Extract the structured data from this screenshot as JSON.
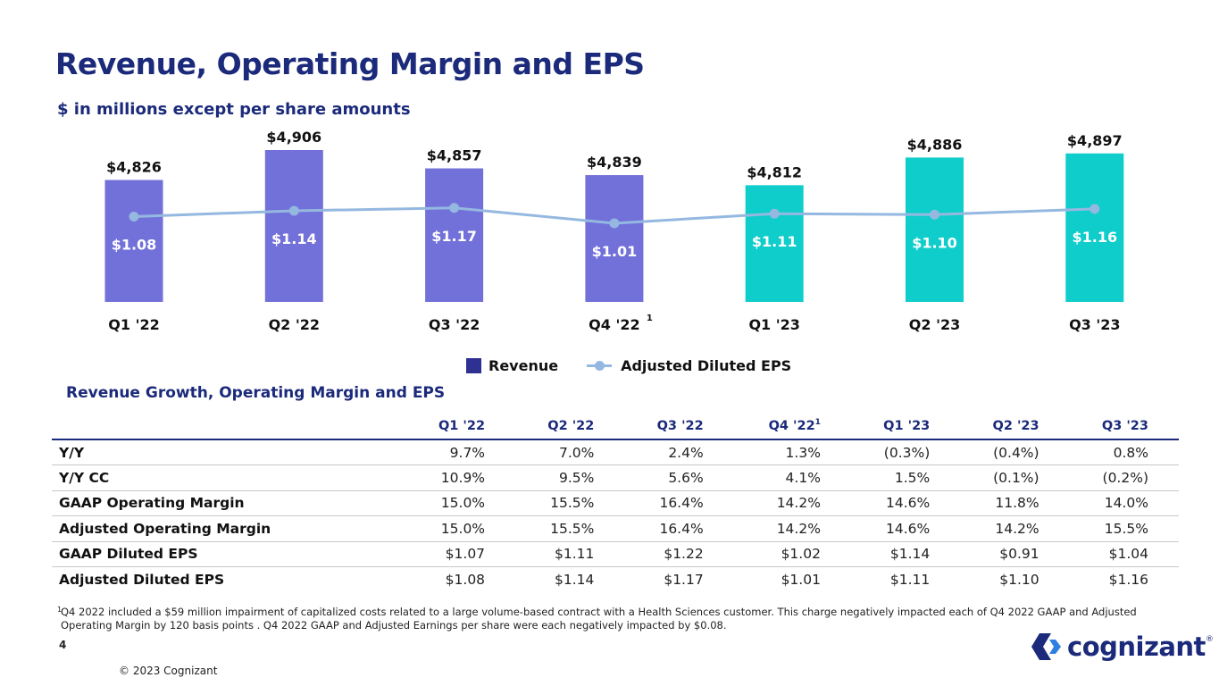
{
  "title": "Revenue, Operating Margin and EPS",
  "subtitle": "$ in millions except per share amounts",
  "colors": {
    "revenue_2022": "#7270d9",
    "revenue_2023": "#0fcdca",
    "eps_line": "#94b8e0",
    "heading": "#1b2a7a",
    "legend_revenue": "#2e3192"
  },
  "chart_data": {
    "type": "bar",
    "categories": [
      "Q1 '22",
      "Q2 '22",
      "Q3 '22",
      "Q4 '22",
      "Q1 '23",
      "Q2 '23",
      "Q3 '23"
    ],
    "category_footnotes": [
      "",
      "",
      "",
      "1",
      "",
      "",
      ""
    ],
    "series": [
      {
        "name": "Revenue",
        "values": [
          4826,
          4906,
          4857,
          4839,
          4812,
          4886,
          4897
        ],
        "labels": [
          "$4,826",
          "$4,906",
          "$4,857",
          "$4,839",
          "$4,812",
          "$4,886",
          "$4,897"
        ]
      },
      {
        "name": "Adjusted Diluted EPS",
        "type": "line",
        "values": [
          1.08,
          1.14,
          1.17,
          1.01,
          1.11,
          1.1,
          1.16
        ],
        "labels": [
          "$1.08",
          "$1.14",
          "$1.17",
          "$1.01",
          "$1.11",
          "$1.10",
          "$1.16"
        ]
      }
    ],
    "legend_position": "bottom",
    "grid": false
  },
  "legend": {
    "revenue": "Revenue",
    "eps": "Adjusted Diluted EPS"
  },
  "table": {
    "title": "Revenue Growth, Operating Margin and EPS",
    "columns": [
      "Q1 '22",
      "Q2 '22",
      "Q3 '22",
      "Q4 '22",
      "Q1 '23",
      "Q2 '23",
      "Q3 '23"
    ],
    "q4_footnote": "1",
    "rows": [
      {
        "label": "Y/Y",
        "values": [
          "9.7%",
          "7.0%",
          "2.4%",
          "1.3%",
          "(0.3%)",
          "(0.4%)",
          "0.8%"
        ]
      },
      {
        "label": "Y/Y CC",
        "values": [
          "10.9%",
          "9.5%",
          "5.6%",
          "4.1%",
          "1.5%",
          "(0.1%)",
          "(0.2%)"
        ]
      },
      {
        "label": "GAAP Operating Margin",
        "values": [
          "15.0%",
          "15.5%",
          "16.4%",
          "14.2%",
          "14.6%",
          "11.8%",
          "14.0%"
        ]
      },
      {
        "label": "Adjusted Operating Margin",
        "values": [
          "15.0%",
          "15.5%",
          "16.4%",
          "14.2%",
          "14.6%",
          "14.2%",
          "15.5%"
        ]
      },
      {
        "label": "GAAP Diluted EPS",
        "values": [
          "$1.07",
          "$1.11",
          "$1.22",
          "$1.02",
          "$1.14",
          "$0.91",
          "$1.04"
        ]
      },
      {
        "label": "Adjusted Diluted EPS",
        "values": [
          "$1.08",
          "$1.14",
          "$1.17",
          "$1.01",
          "$1.11",
          "$1.10",
          "$1.16"
        ]
      }
    ]
  },
  "footnote": {
    "mark": "1",
    "text": "Q4 2022 included a $59 million impairment of capitalized costs related to a large volume-based contract with a Health Sciences customer. This charge negatively impacted each of Q4 2022 GAAP and Adjusted Operating Margin by 120 basis points . Q4 2022 GAAP and Adjusted Earnings per share were each negatively impacted by $0.08."
  },
  "page_number": "4",
  "copyright": "© 2023 Cognizant",
  "logo": {
    "text": "cognizant",
    "mark": "®",
    "icon": "cognizant-chevron-icon"
  }
}
